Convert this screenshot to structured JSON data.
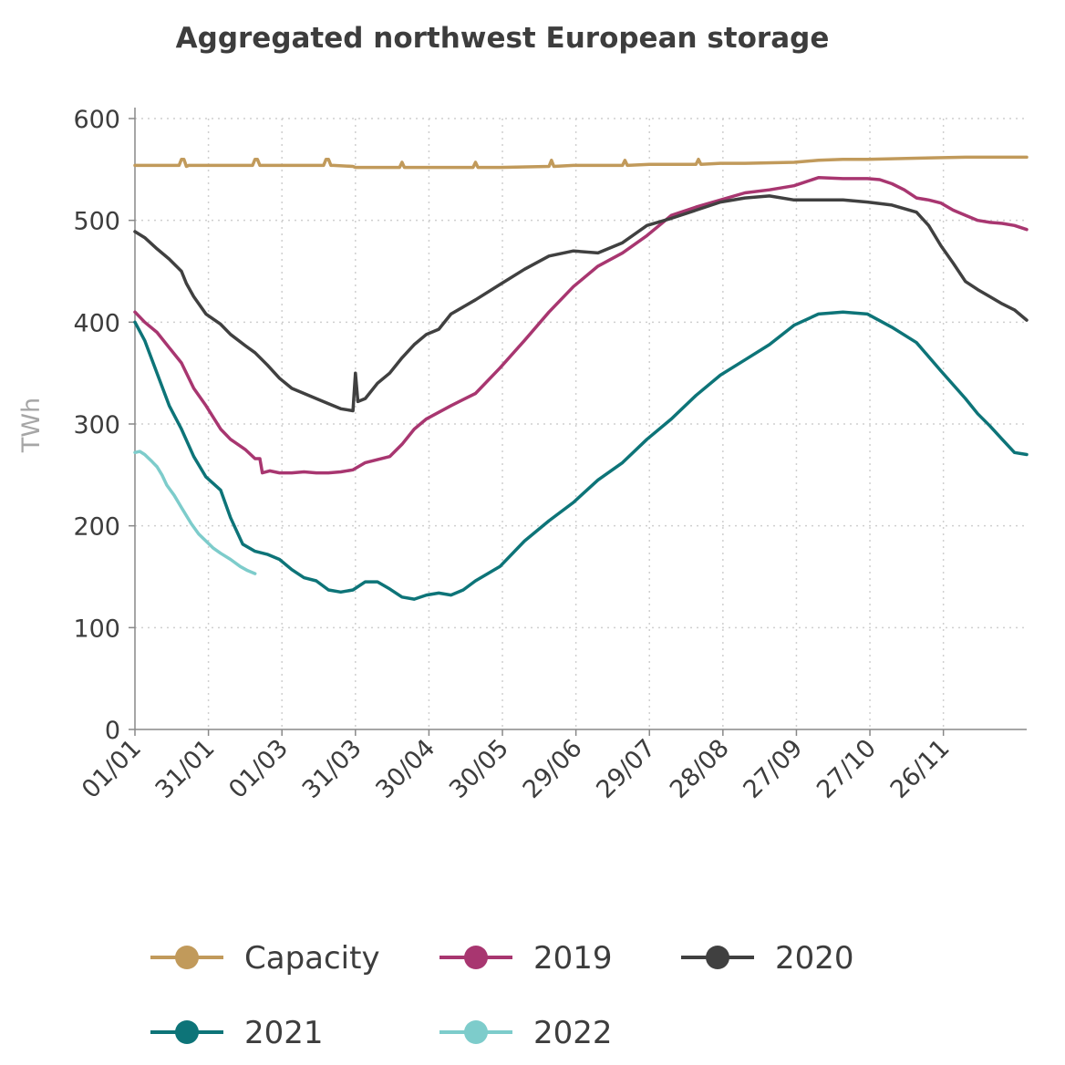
{
  "chart_data": {
    "type": "line",
    "title": "Aggregated northwest European storage",
    "xlabel": "",
    "ylabel": "TWh",
    "ylim": [
      0,
      600
    ],
    "yticks": [
      0,
      100,
      200,
      300,
      400,
      500,
      600
    ],
    "xlim": [
      1,
      365
    ],
    "xtick_labels": [
      "01/01",
      "31/01",
      "01/03",
      "31/03",
      "30/04",
      "30/05",
      "29/06",
      "29/07",
      "28/08",
      "27/09",
      "27/10",
      "26/11"
    ],
    "xtick_days": [
      1,
      31,
      61,
      91,
      121,
      151,
      181,
      211,
      241,
      271,
      301,
      331
    ],
    "grid": true,
    "legend_position": "bottom",
    "series": [
      {
        "name": "Capacity",
        "color": "#c19a5b",
        "x": [
          1,
          8,
          19,
          20,
          21,
          22,
          23,
          30,
          49,
          50,
          51,
          52,
          61,
          78,
          79,
          80,
          81,
          82,
          90,
          91,
          100,
          109,
          110,
          111,
          120,
          139,
          140,
          141,
          150,
          170,
          171,
          172,
          180,
          200,
          201,
          202,
          211,
          230,
          231,
          232,
          240,
          250,
          270,
          280,
          290,
          300,
          320,
          340,
          365
        ],
        "y": [
          554,
          554,
          554,
          560,
          560,
          553,
          554,
          554,
          554,
          560,
          560,
          554,
          554,
          554,
          560,
          560,
          554,
          554,
          553,
          552,
          552,
          552,
          557,
          552,
          552,
          552,
          557,
          552,
          552,
          553,
          559,
          553,
          554,
          554,
          559,
          554,
          555,
          555,
          560,
          555,
          556,
          556,
          557,
          559,
          560,
          560,
          561,
          562,
          562
        ]
      },
      {
        "name": "2019",
        "color": "#a83670",
        "x": [
          1,
          5,
          10,
          15,
          20,
          25,
          30,
          36,
          40,
          46,
          50,
          52,
          53,
          56,
          60,
          65,
          70,
          75,
          80,
          85,
          90,
          95,
          100,
          105,
          110,
          115,
          120,
          130,
          140,
          150,
          160,
          170,
          180,
          190,
          200,
          210,
          220,
          230,
          240,
          250,
          260,
          270,
          280,
          290,
          300,
          305,
          310,
          315,
          320,
          325,
          330,
          335,
          340,
          345,
          350,
          355,
          360,
          365
        ],
        "y": [
          410,
          400,
          390,
          375,
          360,
          335,
          318,
          295,
          285,
          275,
          266,
          266,
          252,
          254,
          252,
          252,
          253,
          252,
          252,
          253,
          255,
          262,
          265,
          268,
          280,
          295,
          305,
          318,
          330,
          355,
          382,
          410,
          435,
          455,
          468,
          485,
          505,
          513,
          520,
          527,
          530,
          534,
          542,
          541,
          541,
          540,
          536,
          530,
          522,
          520,
          517,
          510,
          505,
          500,
          498,
          497,
          495,
          491
        ]
      },
      {
        "name": "2020",
        "color": "#404040",
        "x": [
          1,
          5,
          10,
          15,
          20,
          22,
          25,
          30,
          36,
          40,
          46,
          50,
          55,
          60,
          65,
          70,
          75,
          80,
          85,
          90,
          91,
          92,
          95,
          100,
          105,
          110,
          115,
          120,
          125,
          130,
          140,
          150,
          160,
          170,
          180,
          190,
          200,
          210,
          220,
          230,
          240,
          250,
          260,
          270,
          280,
          290,
          300,
          310,
          320,
          325,
          330,
          335,
          340,
          345,
          350,
          355,
          360,
          365
        ],
        "y": [
          489,
          483,
          472,
          462,
          450,
          438,
          425,
          408,
          398,
          388,
          377,
          370,
          358,
          345,
          335,
          330,
          325,
          320,
          315,
          313,
          350,
          322,
          325,
          340,
          350,
          365,
          378,
          388,
          393,
          408,
          422,
          437,
          452,
          465,
          470,
          468,
          478,
          495,
          502,
          510,
          518,
          522,
          524,
          520,
          520,
          520,
          518,
          515,
          508,
          495,
          475,
          458,
          440,
          432,
          425,
          418,
          412,
          402
        ]
      },
      {
        "name": "2021",
        "color": "#0d7478",
        "x": [
          1,
          5,
          10,
          15,
          20,
          25,
          30,
          36,
          40,
          45,
          50,
          55,
          60,
          65,
          70,
          75,
          80,
          85,
          90,
          95,
          100,
          105,
          110,
          115,
          120,
          125,
          130,
          135,
          140,
          150,
          160,
          170,
          180,
          190,
          200,
          210,
          220,
          230,
          240,
          250,
          260,
          270,
          280,
          290,
          300,
          310,
          320,
          330,
          340,
          345,
          350,
          355,
          360,
          365
        ],
        "y": [
          400,
          382,
          350,
          318,
          295,
          268,
          248,
          235,
          208,
          182,
          175,
          172,
          167,
          157,
          149,
          146,
          137,
          135,
          137,
          145,
          145,
          138,
          130,
          128,
          132,
          134,
          132,
          137,
          146,
          160,
          185,
          205,
          223,
          245,
          262,
          285,
          305,
          328,
          348,
          363,
          378,
          397,
          408,
          410,
          408,
          395,
          380,
          352,
          325,
          310,
          298,
          285,
          272,
          270
        ]
      },
      {
        "name": "2022",
        "color": "#7dcccb",
        "x": [
          1,
          3,
          5,
          8,
          10,
          12,
          14,
          17,
          20,
          24,
          27,
          30,
          33,
          36,
          40,
          44,
          47,
          50
        ],
        "y": [
          272,
          273,
          270,
          263,
          258,
          250,
          240,
          230,
          218,
          202,
          192,
          185,
          178,
          173,
          167,
          160,
          156,
          153
        ]
      }
    ]
  }
}
